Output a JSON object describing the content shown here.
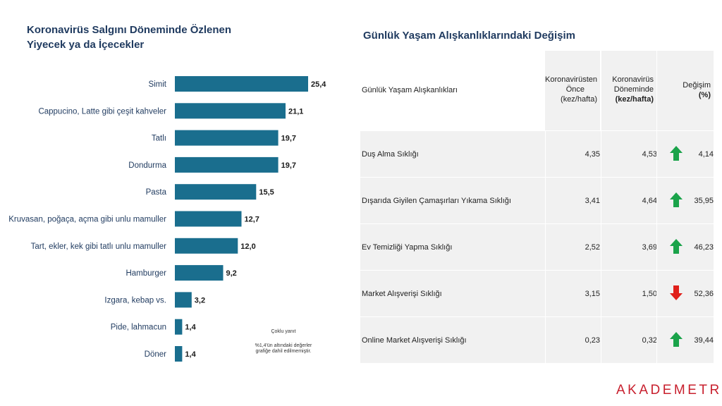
{
  "left": {
    "title": "Koronavirüs Salgını Döneminde Özlenen Yiyecek ya da İçecekler",
    "note_multi": "Çoklu yanıt",
    "note_threshold": "%1,4'ün altındaki değerler grafiğe dahil edilmemiştir."
  },
  "chart_data": {
    "type": "bar",
    "orientation": "horizontal",
    "title": "Koronavirüs Salgını Döneminde Özlenen Yiyecek ya da İçecekler",
    "categories": [
      "Simit",
      "Cappucino, Latte gibi çeşit kahveler",
      "Tatlı",
      "Dondurma",
      "Pasta",
      "Kruvasan, poğaça, açma gibi unlu mamuller",
      "Tart, ekler, kek gibi tatlı unlu mamuller",
      "Hamburger",
      "Izgara, kebap vs.",
      "Pide, lahmacun",
      "Döner"
    ],
    "values": [
      25.4,
      21.1,
      19.7,
      19.7,
      15.5,
      12.7,
      12.0,
      9.2,
      3.2,
      1.4,
      1.4
    ],
    "labels": [
      "25,4",
      "21,1",
      "19,7",
      "19,7",
      "15,5",
      "12,7",
      "12,0",
      "9,2",
      "3,2",
      "1,4",
      "1,4"
    ],
    "xlim": [
      0,
      26
    ],
    "color": "#1a6e8e",
    "grid": false
  },
  "right": {
    "title": "Günlük Yaşam Alışkanlıklarındaki Değişim",
    "header": {
      "label": "Günlük Yaşam Alışkanlıkları",
      "col1_l1": "Koronavirüsten",
      "col1_l2": "Önce",
      "col1_l3": "(kez/hafta)",
      "col2_l1": "Koronavirüs",
      "col2_l2": "Döneminde",
      "col2_l3": "(kez/hafta)",
      "col3_l1": "Değişim",
      "col3_l2": "(%)"
    },
    "rows": [
      {
        "label": "Duş Alma Sıklığı",
        "before": "4,35",
        "during": "4,53",
        "change": "4,14",
        "direction": "up"
      },
      {
        "label": "Dışarıda Giyilen Çamaşırları Yıkama Sıklığı",
        "before": "3,41",
        "during": "4,64",
        "change": "35,95",
        "direction": "up"
      },
      {
        "label": "Ev Temizliği Yapma Sıklığı",
        "before": "2,52",
        "during": "3,69",
        "change": "46,23",
        "direction": "up"
      },
      {
        "label": "Market Alışverişi Sıklığı",
        "before": "3,15",
        "during": "1,50",
        "change": "52,36",
        "direction": "down"
      },
      {
        "label": "Online Market Alışverişi Sıklığı",
        "before": "0,23",
        "during": "0,32",
        "change": "39,44",
        "direction": "up"
      }
    ],
    "colors": {
      "up": "#1aa34a",
      "down": "#e0201b"
    }
  },
  "logo": {
    "text": "AKADEMETRE"
  }
}
